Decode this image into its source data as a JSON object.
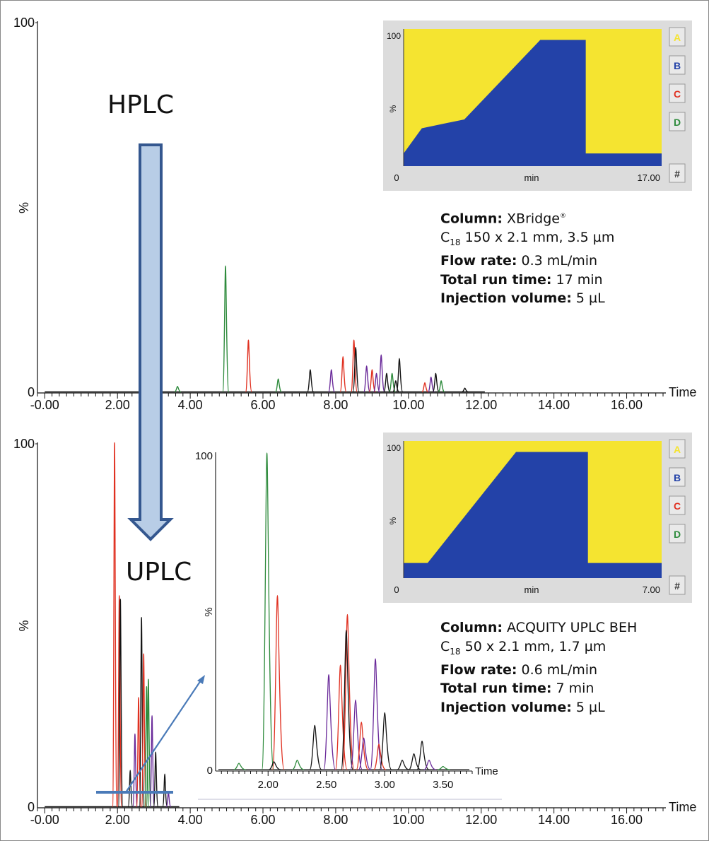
{
  "chart_data": [
    {
      "type": "line",
      "panel": "HPLC chromatogram",
      "label": "HPLC",
      "xlabel": "Time",
      "ylabel": "%",
      "ytick_labels": [
        "0",
        "100"
      ],
      "xlim": [
        -0.2,
        17.0
      ],
      "ylim": [
        0,
        100
      ],
      "x_ticks": [
        "-0.00",
        "2.00",
        "4.00",
        "6.00",
        "8.00",
        "10.00",
        "12.00",
        "14.00",
        "16.00"
      ],
      "baseline_end": 12.1,
      "peaks": [
        {
          "t": 3.65,
          "h": 1.5,
          "color": "green"
        },
        {
          "t": 4.97,
          "h": 34,
          "color": "green"
        },
        {
          "t": 5.6,
          "h": 14,
          "color": "red"
        },
        {
          "t": 6.42,
          "h": 3.5,
          "color": "green"
        },
        {
          "t": 7.3,
          "h": 6,
          "color": "black"
        },
        {
          "t": 7.88,
          "h": 6,
          "color": "purple"
        },
        {
          "t": 8.2,
          "h": 9.5,
          "color": "red"
        },
        {
          "t": 8.5,
          "h": 14,
          "color": "red"
        },
        {
          "t": 8.55,
          "h": 12,
          "color": "black"
        },
        {
          "t": 8.85,
          "h": 7,
          "color": "purple"
        },
        {
          "t": 9.0,
          "h": 6,
          "color": "red"
        },
        {
          "t": 9.12,
          "h": 5,
          "color": "purple"
        },
        {
          "t": 9.25,
          "h": 10,
          "color": "purple"
        },
        {
          "t": 9.4,
          "h": 5,
          "color": "black"
        },
        {
          "t": 9.55,
          "h": 5,
          "color": "green"
        },
        {
          "t": 9.65,
          "h": 3,
          "color": "black"
        },
        {
          "t": 9.75,
          "h": 9,
          "color": "black"
        },
        {
          "t": 10.45,
          "h": 2.5,
          "color": "red"
        },
        {
          "t": 10.62,
          "h": 4,
          "color": "purple"
        },
        {
          "t": 10.75,
          "h": 5,
          "color": "black"
        },
        {
          "t": 10.9,
          "h": 3,
          "color": "green"
        },
        {
          "t": 11.55,
          "h": 1,
          "color": "black"
        }
      ]
    },
    {
      "type": "line",
      "panel": "UPLC chromatogram",
      "label": "UPLC",
      "xlabel": "Time",
      "ylabel": "%",
      "ytick_labels": [
        "0",
        "100"
      ],
      "xlim": [
        -0.2,
        17.0
      ],
      "ylim": [
        0,
        100
      ],
      "x_ticks": [
        "-0.00",
        "2.00",
        "4.00",
        "6.00",
        "8.00",
        "10.00",
        "12.00",
        "14.00",
        "16.00"
      ],
      "baseline_end": 3.7,
      "peaks": [
        {
          "t": 1.92,
          "h": 100,
          "color": "red"
        },
        {
          "t": 2.05,
          "h": 58,
          "color": "red"
        },
        {
          "t": 2.08,
          "h": 57,
          "color": "black"
        },
        {
          "t": 2.35,
          "h": 10,
          "color": "black"
        },
        {
          "t": 2.48,
          "h": 20,
          "color": "purple"
        },
        {
          "t": 2.58,
          "h": 30,
          "color": "red"
        },
        {
          "t": 2.66,
          "h": 52,
          "color": "black"
        },
        {
          "t": 2.72,
          "h": 42,
          "color": "red"
        },
        {
          "t": 2.8,
          "h": 33,
          "color": "green"
        },
        {
          "t": 2.85,
          "h": 35,
          "color": "green"
        },
        {
          "t": 2.95,
          "h": 25,
          "color": "purple"
        },
        {
          "t": 3.05,
          "h": 15,
          "color": "black"
        },
        {
          "t": 3.3,
          "h": 9,
          "color": "black"
        },
        {
          "t": 3.4,
          "h": 4,
          "color": "purple"
        }
      ]
    },
    {
      "type": "line",
      "panel": "UPLC zoom inset",
      "xlabel": "Time",
      "ylabel": "%",
      "ytick_labels": [
        "0",
        "100"
      ],
      "xlim": [
        1.55,
        3.75
      ],
      "ylim": [
        0,
        100
      ],
      "x_ticks": [
        "2.00",
        "2.50",
        "3.00",
        "3.50"
      ],
      "peaks": [
        {
          "t": 1.75,
          "h": 2,
          "color": "green"
        },
        {
          "t": 1.99,
          "h": 100,
          "color": "green"
        },
        {
          "t": 2.08,
          "h": 55,
          "color": "red"
        },
        {
          "t": 2.05,
          "h": 2.5,
          "color": "black"
        },
        {
          "t": 2.25,
          "h": 3,
          "color": "green"
        },
        {
          "t": 2.4,
          "h": 14,
          "color": "black"
        },
        {
          "t": 2.52,
          "h": 30,
          "color": "purple"
        },
        {
          "t": 2.62,
          "h": 33,
          "color": "red"
        },
        {
          "t": 2.68,
          "h": 49,
          "color": "red"
        },
        {
          "t": 2.67,
          "h": 44,
          "color": "black"
        },
        {
          "t": 2.75,
          "h": 22,
          "color": "purple"
        },
        {
          "t": 2.8,
          "h": 15,
          "color": "red"
        },
        {
          "t": 2.82,
          "h": 10,
          "color": "purple"
        },
        {
          "t": 2.92,
          "h": 35,
          "color": "purple"
        },
        {
          "t": 2.95,
          "h": 8,
          "color": "red"
        },
        {
          "t": 3.0,
          "h": 18,
          "color": "black"
        },
        {
          "t": 3.15,
          "h": 3,
          "color": "black"
        },
        {
          "t": 3.25,
          "h": 5,
          "color": "black"
        },
        {
          "t": 3.32,
          "h": 9,
          "color": "black"
        },
        {
          "t": 3.38,
          "h": 3,
          "color": "purple"
        },
        {
          "t": 3.5,
          "h": 1,
          "color": "green"
        }
      ]
    },
    {
      "type": "area",
      "panel": "HPLC gradient",
      "ylabel": "%",
      "xlabel": "min",
      "x_start_label": "0",
      "x_end_label": "17.00",
      "y_top_label": "100",
      "xlim": [
        0,
        17.0
      ],
      "ylim": [
        0,
        100
      ],
      "series": [
        {
          "name": "B",
          "x": [
            0,
            1.2,
            4.0,
            9.0,
            12.0,
            12.0,
            17.0
          ],
          "y": [
            10,
            30,
            37,
            100,
            100,
            10,
            10
          ]
        }
      ],
      "buttons": [
        "A",
        "B",
        "C",
        "D",
        "#"
      ]
    },
    {
      "type": "area",
      "panel": "UPLC gradient",
      "ylabel": "%",
      "xlabel": "min",
      "x_start_label": "0",
      "x_end_label": "7.00",
      "y_top_label": "100",
      "xlim": [
        0,
        7.0
      ],
      "ylim": [
        0,
        100
      ],
      "series": [
        {
          "name": "B",
          "x": [
            0,
            0.65,
            3.05,
            5.0,
            5.0,
            7.0
          ],
          "y": [
            12,
            12,
            100,
            100,
            12,
            12
          ]
        }
      ],
      "buttons": [
        "A",
        "B",
        "C",
        "D",
        "#"
      ]
    }
  ],
  "colors": {
    "green": "#2e8b3c",
    "red": "#e03020",
    "black": "#151515",
    "purple": "#6a2a9a",
    "yellow": "#f5e430",
    "blue": "#2342a8",
    "arrow_fill": "#b8cde6",
    "arrow_stroke": "#34578f",
    "pointer": "#4a7ab8"
  },
  "hplc_info": {
    "column_label": "Column:",
    "column_value": "XBridge",
    "column_mark": "®",
    "column_line2_prefix": "C",
    "column_line2_sub": "18",
    "column_line2_rest": " 150 x 2.1 mm, 3.5 µm",
    "flow_label": "Flow rate:",
    "flow_value": " 0.3 mL/min",
    "runtime_label": "Total run time:",
    "runtime_value": " 17 min",
    "injection_label": "Injection volume:",
    "injection_value": " 5 µL"
  },
  "uplc_info": {
    "column_label": "Column:",
    "column_value": " ACQUITY UPLC BEH",
    "column_line2_prefix": "C",
    "column_line2_sub": "18",
    "column_line2_rest": " 50 x 2.1 mm, 1.7 µm",
    "flow_label": "Flow rate:",
    "flow_value": " 0.6 mL/min",
    "runtime_label": "Total run time:",
    "runtime_value": " 7 min",
    "injection_label": "Injection volume:",
    "injection_value": " 5 µL"
  }
}
